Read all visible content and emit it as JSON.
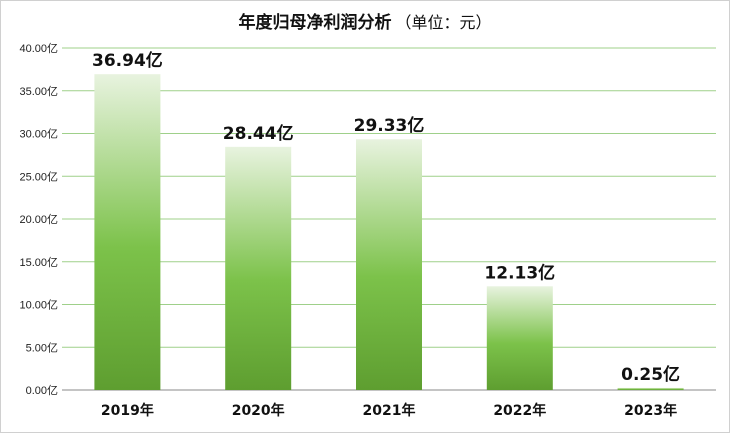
{
  "chart_data": {
    "type": "bar",
    "title": "年度归母净利润分析",
    "unit_note": "（单位：元）",
    "categories": [
      "2019年",
      "2020年",
      "2021年",
      "2022年",
      "2023年"
    ],
    "values": [
      36.94,
      28.44,
      29.33,
      12.13,
      0.25
    ],
    "data_labels": [
      "36.94亿",
      "28.44亿",
      "29.33亿",
      "12.13亿",
      "0.25亿"
    ],
    "y_ticks": [
      "0.00亿",
      "5.00亿",
      "10.00亿",
      "15.00亿",
      "20.00亿",
      "25.00亿",
      "30.00亿",
      "35.00亿",
      "40.00亿"
    ],
    "ylim": [
      0,
      40
    ],
    "grid": true,
    "legend": "none",
    "colors": {
      "bar_top": "#e8f3df",
      "bar_mid": "#7cc24a",
      "bar_bottom": "#5e9e30",
      "grid": "#9fd08a"
    }
  }
}
